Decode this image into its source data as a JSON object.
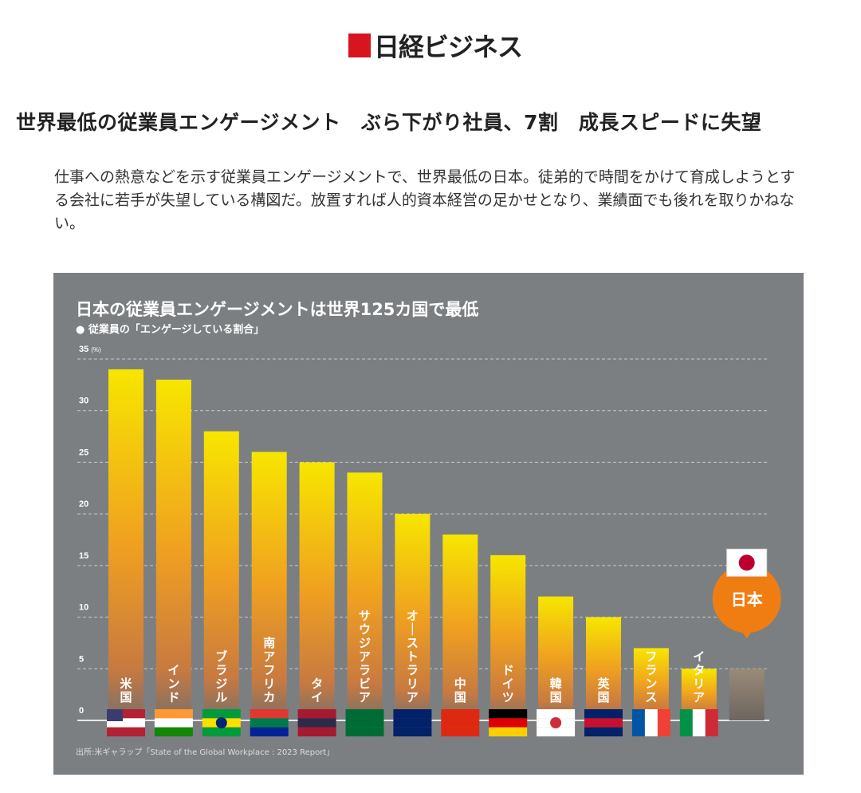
{
  "logo": {
    "text": "日経ビジネス"
  },
  "article": {
    "headline": "世界最低の従業員エンゲージメント　ぶら下がり社員、7割　成長スピードに失望",
    "lead": "仕事への熱意などを示す従業員エンゲージメントで、世界最低の日本。徒弟的で時間をかけて育成しようとする会社に若手が失望している構図だ。放置すれば人的資本経営の足かせとなり、業績面でも後れを取りかねない。"
  },
  "chart_data": {
    "type": "bar",
    "title": "日本の従業員エンゲージメントは世界125カ国で最低",
    "subtitle": "● 従業員の「エンゲージしている割合」",
    "ylabel": "(%)",
    "ylim": [
      0,
      35
    ],
    "yticks": [
      0,
      5,
      10,
      15,
      20,
      25,
      30,
      35
    ],
    "grid": true,
    "categories": [
      "米国",
      "インド",
      "ブラジル",
      "南アフリカ",
      "タイ",
      "サウジアラビア",
      "オーストラリア",
      "中国",
      "ドイツ",
      "韓国",
      "英国",
      "フランス",
      "イタリア",
      "日本"
    ],
    "values": [
      34,
      33,
      28,
      26,
      25,
      24,
      20,
      18,
      16,
      12,
      10,
      7,
      5,
      5
    ],
    "highlight": "日本",
    "highlight_color": "#f07d12",
    "source": "出所:米ギャラップ「State of the Global Workplace : 2023 Report」"
  }
}
